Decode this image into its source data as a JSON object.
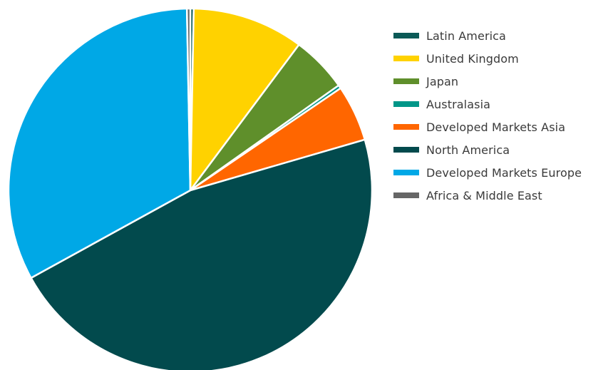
{
  "chart_data": {
    "type": "pie",
    "title": "",
    "legend_position": "right",
    "slices": [
      {
        "label": "Latin America",
        "value": 0.3,
        "color": "#0b5a57"
      },
      {
        "label": "United Kingdom",
        "value": 9.9,
        "color": "#ffd200"
      },
      {
        "label": "Japan",
        "value": 5.0,
        "color": "#5f8f2b"
      },
      {
        "label": "Australasia",
        "value": 0.3,
        "color": "#009688"
      },
      {
        "label": "Developed Markets Asia",
        "value": 5.0,
        "color": "#ff6600"
      },
      {
        "label": "North America",
        "value": 46.5,
        "color": "#024a4d"
      },
      {
        "label": "Developed Markets Europe",
        "value": 32.7,
        "color": "#00a8e6"
      },
      {
        "label": "Africa & Middle East",
        "value": 0.3,
        "color": "#666666"
      }
    ]
  }
}
